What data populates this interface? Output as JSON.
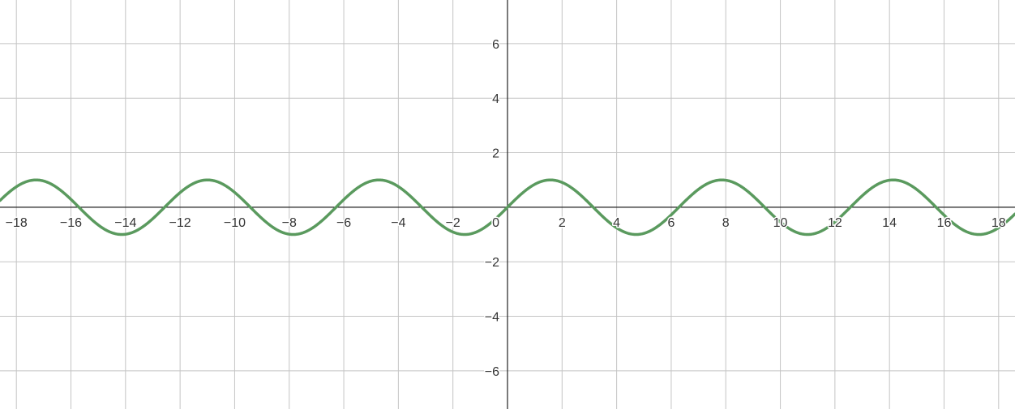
{
  "chart_data": {
    "type": "line",
    "title": "",
    "xlabel": "",
    "ylabel": "",
    "xlim": [
      -18.6,
      18.6
    ],
    "ylim": [
      -7.4,
      7.6
    ],
    "grid": true,
    "x_ticks": [
      -18,
      -16,
      -14,
      -12,
      -10,
      -8,
      -6,
      -4,
      -2,
      2,
      4,
      6,
      8,
      10,
      12,
      14,
      16,
      18
    ],
    "x_tick_labels": [
      "−18",
      "−16",
      "−14",
      "−12",
      "−10",
      "−8",
      "−6",
      "−4",
      "−2",
      "2",
      "4",
      "6",
      "8",
      "10",
      "12",
      "14",
      "16",
      "18"
    ],
    "y_ticks": [
      6,
      4,
      2,
      -2,
      -4,
      -6
    ],
    "y_tick_labels": [
      "6",
      "4",
      "2",
      "−2",
      "−4",
      "−6"
    ],
    "origin_label": "0",
    "series": [
      {
        "name": "",
        "function": "sin(x)",
        "color": "#5a9a5e",
        "x": [
          -18.6,
          -17.28,
          -15.71,
          -14.14,
          -12.57,
          -11.0,
          -9.42,
          -7.85,
          -6.28,
          -4.71,
          -3.14,
          -1.57,
          0,
          1.57,
          3.14,
          4.71,
          6.28,
          7.85,
          9.42,
          11.0,
          12.57,
          14.14,
          15.71,
          17.28,
          18.6
        ],
        "y": [
          0.26,
          1,
          0,
          -1,
          0,
          1,
          0,
          -1,
          0,
          1,
          0,
          -1,
          0,
          1,
          0,
          -1,
          0,
          1,
          0,
          -1,
          0,
          1,
          0,
          -1,
          -0.26
        ]
      }
    ]
  }
}
